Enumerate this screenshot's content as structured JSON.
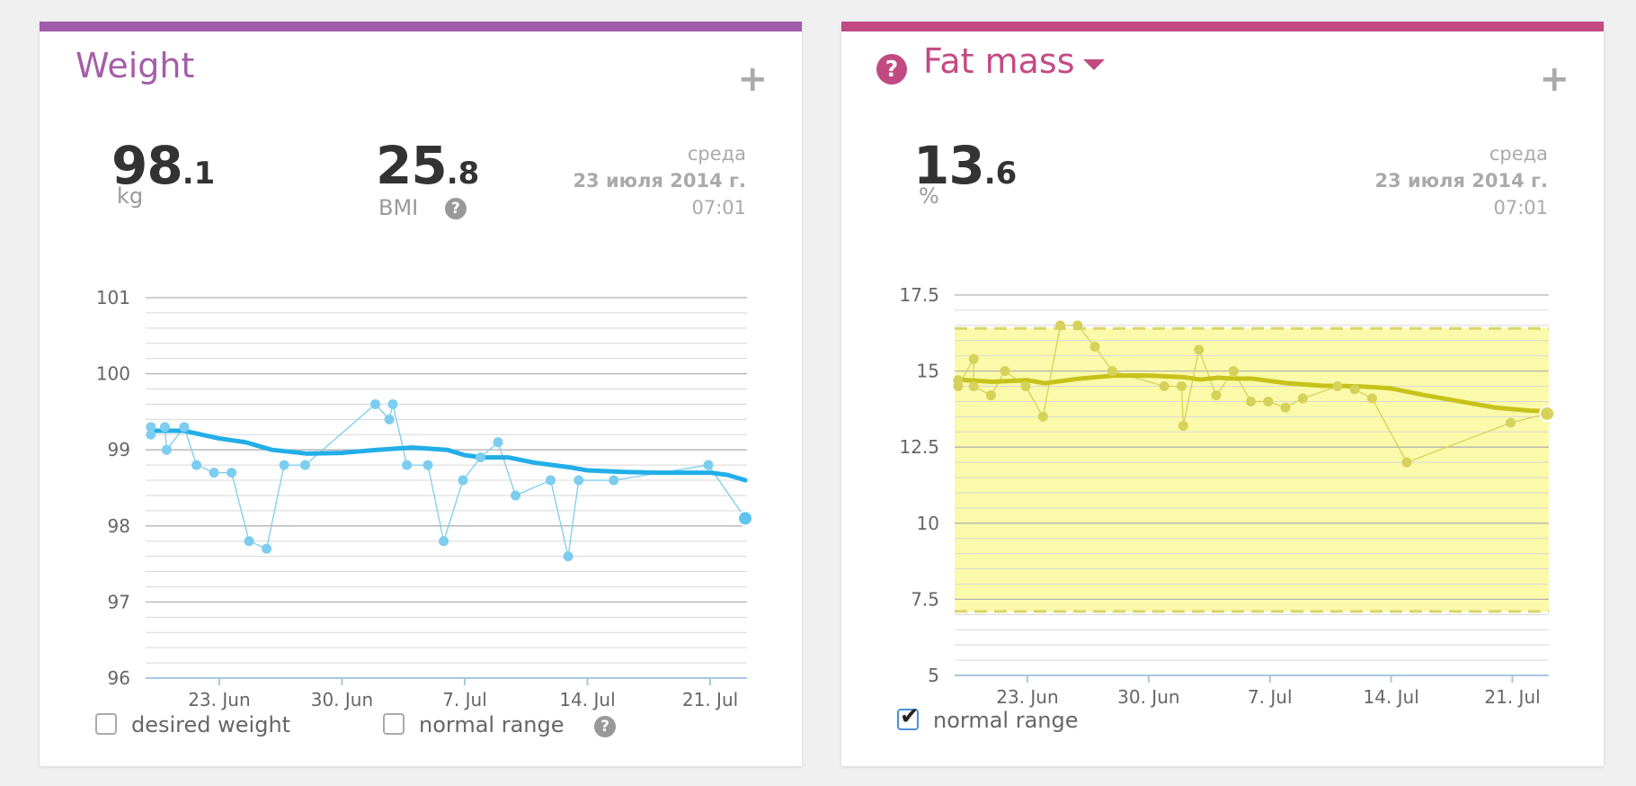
{
  "colors": {
    "weight_bar": "#9f5ca8",
    "fat_bar": "#c14a82",
    "weight_title": "#a45ea8",
    "fat_title": "#c44a83",
    "weight_line": "#22aee8",
    "weight_point": "#7ccdef",
    "fat_line": "#c7c21c",
    "fat_point": "#d6d15a",
    "fat_band": "#fbfaaa",
    "fat_band_border": "#d9d56a"
  },
  "weight": {
    "title": "Weight",
    "value_int": "98",
    "value_dec": ".1",
    "unit": "kg",
    "bmi_int": "25",
    "bmi_dec": ".8",
    "bmi_label": "BMI",
    "help_glyph": "?",
    "date_weekday": "среда",
    "date_day": "23 июля 2014 г.",
    "date_time": "07:01",
    "legend_desired": "desired weight",
    "legend_normal": "normal range"
  },
  "fat": {
    "title": "Fat mass",
    "help_glyph": "?",
    "value_int": "13",
    "value_dec": ".6",
    "unit": "%",
    "date_weekday": "среда",
    "date_day": "23 июля 2014 г.",
    "date_time": "07:01",
    "legend_normal": "normal range"
  },
  "chart_data": [
    {
      "type": "line",
      "name": "weight",
      "ylim": [
        96,
        101
      ],
      "yticks": [
        96,
        97,
        98,
        99,
        100,
        101
      ],
      "ytick_labels": [
        "96",
        "97",
        "98",
        "99",
        "100",
        "101"
      ],
      "xlim": [
        18.8,
        53.1
      ],
      "xticks": [
        23,
        30,
        37,
        44,
        51
      ],
      "xtick_labels": [
        "23. Jun",
        "30. Jun",
        "7. Jul",
        "14. Jul",
        "21. Jul"
      ],
      "grid": true,
      "series": [
        {
          "name": "measurements",
          "points": [
            [
              19.1,
              99.3
            ],
            [
              19.1,
              99.2
            ],
            [
              19.9,
              99.3
            ],
            [
              20.0,
              99.0
            ],
            [
              21.0,
              99.3
            ],
            [
              21.7,
              98.8
            ],
            [
              22.7,
              98.7
            ],
            [
              23.7,
              98.7
            ],
            [
              24.7,
              97.8
            ],
            [
              25.7,
              97.7
            ],
            [
              26.7,
              98.8
            ],
            [
              27.9,
              98.8
            ],
            [
              31.9,
              99.6
            ],
            [
              32.7,
              99.4
            ],
            [
              32.9,
              99.6
            ],
            [
              33.7,
              98.8
            ],
            [
              34.9,
              98.8
            ],
            [
              35.8,
              97.8
            ],
            [
              36.9,
              98.6
            ],
            [
              37.9,
              98.9
            ],
            [
              38.9,
              99.1
            ],
            [
              39.9,
              98.4
            ],
            [
              41.9,
              98.6
            ],
            [
              42.9,
              97.6
            ],
            [
              43.5,
              98.6
            ],
            [
              45.5,
              98.6
            ],
            [
              50.9,
              98.8
            ],
            [
              53.0,
              98.1
            ]
          ]
        },
        {
          "name": "trend",
          "points": [
            [
              19.1,
              99.25
            ],
            [
              21.0,
              99.25
            ],
            [
              23.0,
              99.15
            ],
            [
              24.5,
              99.1
            ],
            [
              26.0,
              99.0
            ],
            [
              28.0,
              98.95
            ],
            [
              30.0,
              98.96
            ],
            [
              32.0,
              99.0
            ],
            [
              34.0,
              99.03
            ],
            [
              36.0,
              99.0
            ],
            [
              37.0,
              98.93
            ],
            [
              38.0,
              98.9
            ],
            [
              39.5,
              98.9
            ],
            [
              41.0,
              98.83
            ],
            [
              43.0,
              98.77
            ],
            [
              44.0,
              98.73
            ],
            [
              46.0,
              98.71
            ],
            [
              48.0,
              98.7
            ],
            [
              51.0,
              98.7
            ],
            [
              52.0,
              98.67
            ],
            [
              53.0,
              98.6
            ]
          ]
        }
      ]
    },
    {
      "type": "line",
      "name": "fat mass",
      "ylim": [
        5,
        17.5
      ],
      "yticks": [
        5,
        7.5,
        10,
        12.5,
        15,
        17.5
      ],
      "ytick_labels": [
        "5",
        "7.5",
        "10",
        "12.5",
        "15",
        "17.5"
      ],
      "xlim": [
        18.8,
        53.1
      ],
      "xticks": [
        23,
        30,
        37,
        44,
        51
      ],
      "xtick_labels": [
        "23. Jun",
        "30. Jun",
        "7. Jul",
        "14. Jul",
        "21. Jul"
      ],
      "grid": true,
      "normal_range": [
        7.1,
        16.4
      ],
      "series": [
        {
          "name": "measurements",
          "points": [
            [
              19.0,
              14.7
            ],
            [
              19.0,
              14.5
            ],
            [
              19.9,
              15.4
            ],
            [
              19.9,
              14.5
            ],
            [
              20.9,
              14.2
            ],
            [
              21.7,
              15.0
            ],
            [
              22.9,
              14.5
            ],
            [
              23.9,
              13.5
            ],
            [
              24.9,
              16.5
            ],
            [
              25.9,
              16.5
            ],
            [
              26.9,
              15.8
            ],
            [
              27.9,
              15.0
            ],
            [
              30.9,
              14.5
            ],
            [
              31.9,
              14.5
            ],
            [
              32.0,
              13.2
            ],
            [
              32.9,
              15.7
            ],
            [
              33.9,
              14.2
            ],
            [
              34.9,
              15.0
            ],
            [
              35.9,
              14.0
            ],
            [
              36.9,
              14.0
            ],
            [
              37.9,
              13.8
            ],
            [
              38.9,
              14.1
            ],
            [
              40.9,
              14.5
            ],
            [
              41.9,
              14.4
            ],
            [
              42.9,
              14.1
            ],
            [
              44.9,
              12.0
            ],
            [
              50.9,
              13.3
            ],
            [
              53.0,
              13.6
            ]
          ]
        },
        {
          "name": "trend",
          "points": [
            [
              19.0,
              14.72
            ],
            [
              21.0,
              14.65
            ],
            [
              23.0,
              14.7
            ],
            [
              24.0,
              14.6
            ],
            [
              26.0,
              14.75
            ],
            [
              28.0,
              14.85
            ],
            [
              30.0,
              14.85
            ],
            [
              32.0,
              14.8
            ],
            [
              33.0,
              14.72
            ],
            [
              34.0,
              14.78
            ],
            [
              35.0,
              14.75
            ],
            [
              36.0,
              14.75
            ],
            [
              38.0,
              14.6
            ],
            [
              40.0,
              14.52
            ],
            [
              42.0,
              14.5
            ],
            [
              43.0,
              14.47
            ],
            [
              44.0,
              14.43
            ],
            [
              46.0,
              14.2
            ],
            [
              48.0,
              14.0
            ],
            [
              50.0,
              13.8
            ],
            [
              52.0,
              13.7
            ],
            [
              53.0,
              13.68
            ]
          ]
        }
      ]
    }
  ]
}
